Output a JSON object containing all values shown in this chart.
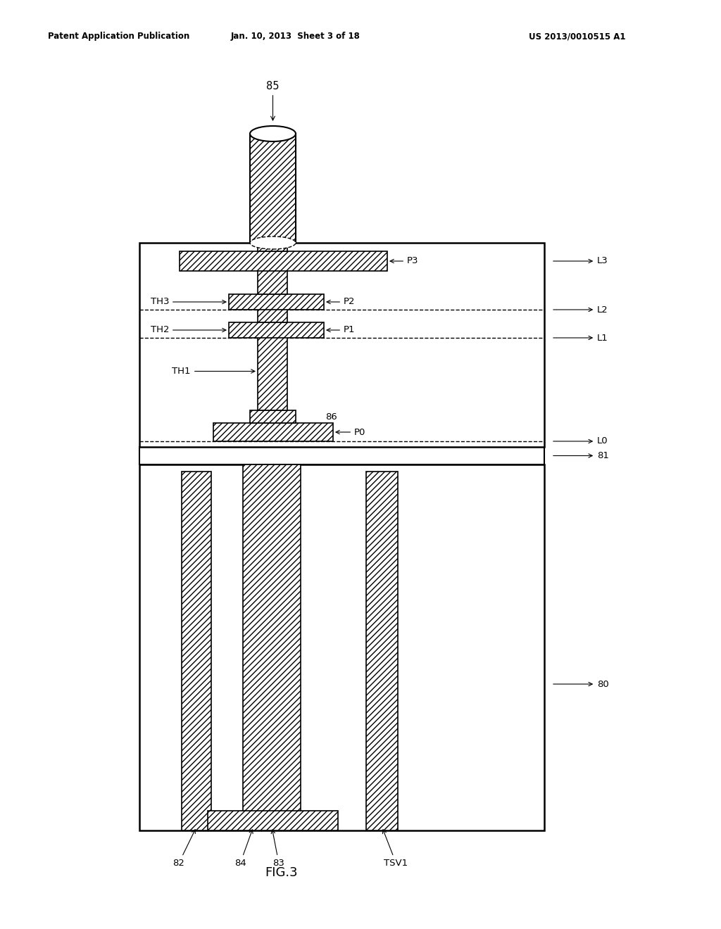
{
  "bg_color": "#ffffff",
  "header_left": "Patent Application Publication",
  "header_mid": "Jan. 10, 2013  Sheet 3 of 18",
  "header_right": "US 2013/0010515 A1",
  "fig_label": "FIG.3"
}
